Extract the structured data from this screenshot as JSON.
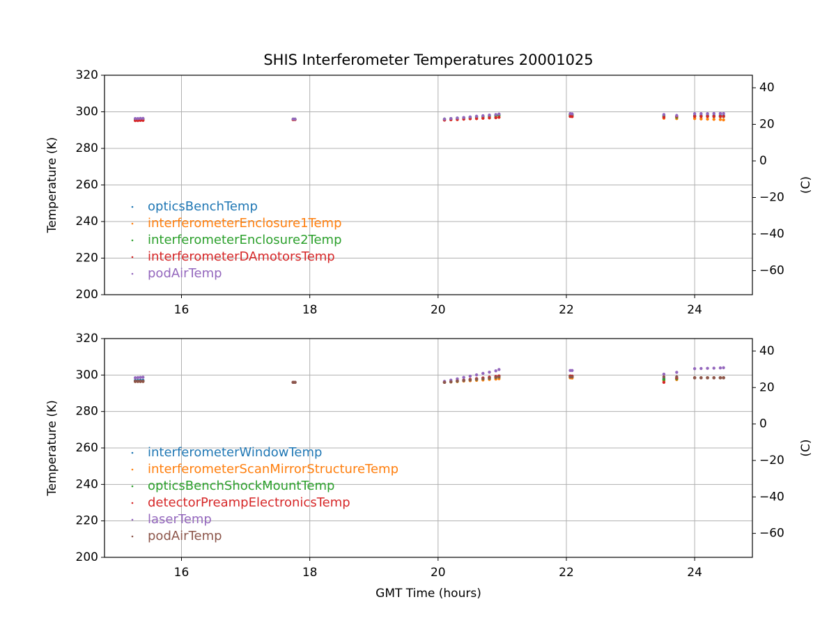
{
  "title": "SHIS Interferometer Temperatures 20001025",
  "chart_data": [
    {
      "type": "scatter",
      "ylabel": "Temperature (K)",
      "y2label": "(C)",
      "grid": true,
      "legend": "lower left",
      "x": [
        15.28,
        15.32,
        15.36,
        15.4,
        17.74,
        17.77,
        20.1,
        20.2,
        20.3,
        20.4,
        20.5,
        20.6,
        20.7,
        20.8,
        20.9,
        20.95,
        22.06,
        22.09,
        23.52,
        23.72,
        24.0,
        24.1,
        24.2,
        24.3,
        24.4,
        24.45
      ],
      "xlim": [
        14.8,
        24.9
      ],
      "xticks": [
        16,
        18,
        20,
        22,
        24
      ],
      "ylim": [
        200,
        320
      ],
      "yticks": [
        200,
        220,
        240,
        260,
        280,
        300,
        320
      ],
      "y2lim": [
        -73.15,
        46.85
      ],
      "y2ticks": [
        {
          "value": -60,
          "label": "−60"
        },
        {
          "value": -40,
          "label": "−40"
        },
        {
          "value": -20,
          "label": "−20"
        },
        0,
        20,
        40
      ],
      "series": [
        {
          "name": "opticsBenchTemp",
          "color": "#1f77b4",
          "values": [
            296,
            296,
            296.1,
            296.2,
            295.8,
            295.8,
            296,
            296.3,
            296.6,
            296.8,
            297.1,
            297.4,
            297.7,
            297.9,
            298.2,
            298.5,
            298.5,
            298.4,
            298,
            297.5,
            298,
            298,
            298,
            298,
            298,
            298
          ]
        },
        {
          "name": "interferometerEnclosure1Temp",
          "color": "#ff7f0e",
          "values": [
            295.5,
            295.5,
            295.6,
            295.6,
            295.7,
            295.8,
            295.5,
            295.7,
            295.8,
            296,
            296.2,
            296.3,
            296.5,
            296.7,
            296.8,
            297,
            297.5,
            297.4,
            296.5,
            296.3,
            296.3,
            296.1,
            296,
            295.9,
            295.8,
            295.6
          ]
        },
        {
          "name": "interferometerEnclosure2Temp",
          "color": "#2ca02c",
          "values": [
            296,
            296,
            296,
            296.1,
            296,
            296,
            296,
            296.2,
            296.4,
            296.7,
            296.9,
            297.1,
            297.3,
            297.6,
            297.8,
            298,
            298.3,
            298.2,
            297.5,
            297,
            297.5,
            297.5,
            297.5,
            297.4,
            297.4,
            297.4
          ]
        },
        {
          "name": "interferometerDAmotorsTemp",
          "color": "#d62728",
          "values": [
            295.2,
            295.2,
            295.3,
            295.3,
            295.8,
            295.8,
            295.5,
            295.7,
            295.8,
            296,
            296.2,
            296.3,
            296.5,
            296.7,
            296.8,
            297,
            297.5,
            297.4,
            297,
            297.5,
            297.5,
            297.5,
            297.5,
            297.5,
            297.5,
            297.5
          ]
        },
        {
          "name": "podAirTemp",
          "color": "#9467bd",
          "values": [
            296.3,
            296.3,
            296.4,
            296.4,
            296,
            296,
            296,
            296.3,
            296.6,
            296.9,
            297.2,
            297.6,
            297.9,
            298.2,
            298.5,
            298.8,
            299,
            298.9,
            298.5,
            298,
            299,
            299,
            299,
            299.1,
            299.1,
            299.1
          ]
        }
      ]
    },
    {
      "type": "scatter",
      "ylabel": "Temperature (K)",
      "y2label": "(C)",
      "xlabel": "GMT Time (hours)",
      "grid": true,
      "legend": "lower left",
      "x": [
        15.28,
        15.32,
        15.36,
        15.4,
        17.74,
        17.77,
        20.1,
        20.2,
        20.3,
        20.4,
        20.5,
        20.6,
        20.7,
        20.8,
        20.9,
        20.95,
        22.06,
        22.09,
        23.52,
        23.72,
        24.0,
        24.1,
        24.2,
        24.3,
        24.4,
        24.45
      ],
      "xlim": [
        14.8,
        24.9
      ],
      "xticks": [
        16,
        18,
        20,
        22,
        24
      ],
      "ylim": [
        200,
        320
      ],
      "yticks": [
        200,
        220,
        240,
        260,
        280,
        300,
        320
      ],
      "y2lim": [
        -73.15,
        46.85
      ],
      "y2ticks": [
        {
          "value": -60,
          "label": "−60"
        },
        {
          "value": -40,
          "label": "−40"
        },
        {
          "value": -20,
          "label": "−20"
        },
        0,
        20,
        40
      ],
      "series": [
        {
          "name": "interferometerWindowTemp",
          "color": "#1f77b4",
          "values": [
            297,
            297,
            297.1,
            297.1,
            296,
            296,
            296,
            296.4,
            296.8,
            297.2,
            297.6,
            298,
            298.4,
            298.8,
            299.2,
            299.5,
            299.5,
            299.4,
            298,
            298,
            298.5,
            298.5,
            298.5,
            298.5,
            298.5,
            298.5
          ]
        },
        {
          "name": "interferometerScanMirrorStructureTemp",
          "color": "#ff7f0e",
          "values": [
            296.5,
            296.5,
            296.5,
            296.5,
            296,
            296,
            296,
            296.2,
            296.4,
            296.7,
            296.9,
            297.1,
            297.3,
            297.6,
            297.8,
            298,
            298.5,
            298.4,
            297,
            297.5,
            298.5,
            298.5,
            298.5,
            298.5,
            298.5,
            298.5
          ]
        },
        {
          "name": "opticsBenchShockMountTemp",
          "color": "#2ca02c",
          "values": [
            296.5,
            296.5,
            296.5,
            296.5,
            296,
            296,
            296,
            296.3,
            296.6,
            297,
            297.3,
            297.6,
            297.9,
            298.2,
            298.6,
            298.9,
            299,
            299,
            297.5,
            298,
            298.5,
            298.5,
            298.5,
            298.5,
            298.5,
            298.5
          ]
        },
        {
          "name": "detectorPreampElectronicsTemp",
          "color": "#d62728",
          "values": [
            296.5,
            296.5,
            296.5,
            296.5,
            296,
            296,
            296,
            296.4,
            296.8,
            297.2,
            297.6,
            298,
            298.4,
            298.8,
            299.2,
            299.5,
            299.5,
            299.4,
            296,
            298.5,
            298.5,
            298.5,
            298.5,
            298.5,
            298.5,
            298.5
          ]
        },
        {
          "name": "laserTemp",
          "color": "#9467bd",
          "values": [
            298.5,
            298.6,
            298.7,
            298.8,
            296,
            296,
            296.5,
            297.2,
            297.9,
            298.7,
            299.4,
            300.1,
            300.9,
            301.6,
            302.3,
            303,
            302.5,
            302.5,
            300.5,
            301.5,
            303.5,
            303.6,
            303.7,
            303.8,
            303.9,
            304
          ]
        },
        {
          "name": "podAirTemp",
          "color": "#8c564b",
          "values": [
            296.5,
            296.5,
            296.5,
            296.5,
            296,
            296,
            296,
            296.3,
            296.7,
            297,
            297.3,
            297.7,
            298,
            298.3,
            298.7,
            299,
            299,
            299,
            299,
            299,
            298.5,
            298.5,
            298.5,
            298.5,
            298.5,
            298.5
          ]
        }
      ]
    }
  ]
}
